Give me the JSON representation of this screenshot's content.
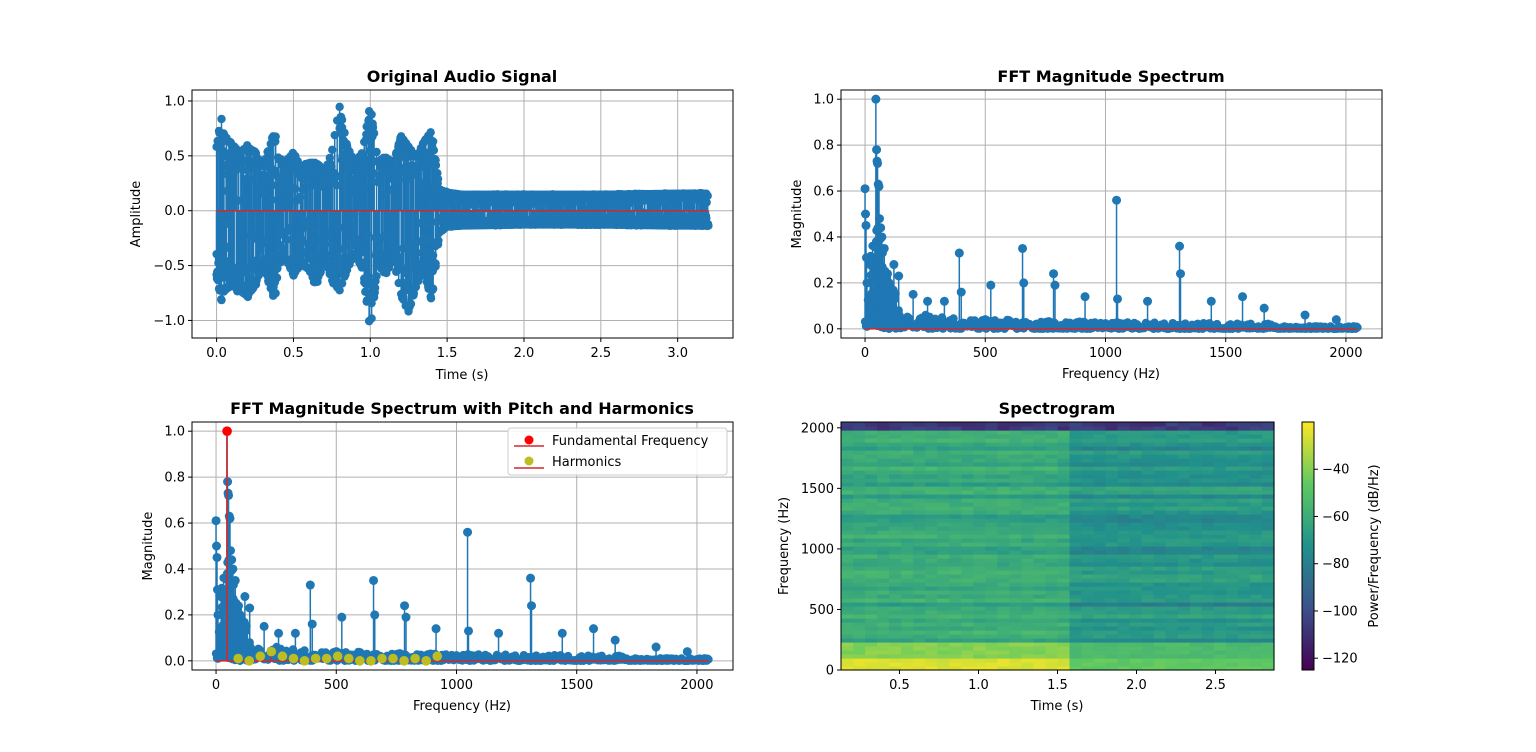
{
  "chart_data": [
    {
      "type": "stem",
      "title": "Original Audio Signal",
      "xlabel": "Time (s)",
      "ylabel": "Amplitude",
      "xlim": [
        -0.16,
        3.36
      ],
      "ylim": [
        -1.16,
        1.1
      ],
      "xticks": [
        0.0,
        0.5,
        1.0,
        1.5,
        2.0,
        2.5,
        3.0
      ],
      "xtick_labels": [
        "0.0",
        "0.5",
        "1.0",
        "1.5",
        "2.0",
        "2.5",
        "3.0"
      ],
      "yticks": [
        -1.0,
        -0.5,
        0.0,
        0.5,
        1.0
      ],
      "ytick_labels": [
        "−1.0",
        "−0.5",
        "0.0",
        "0.5",
        "1.0"
      ],
      "grid": true,
      "series_color": "#1f77b4",
      "baseline_color": "#d62728",
      "envelope": {
        "t": [
          0.0,
          0.03,
          0.05,
          0.1,
          0.15,
          0.2,
          0.25,
          0.3,
          0.38,
          0.4,
          0.45,
          0.5,
          0.55,
          0.6,
          0.65,
          0.7,
          0.75,
          0.8,
          0.85,
          0.9,
          0.95,
          1.0,
          1.05,
          1.1,
          1.15,
          1.2,
          1.25,
          1.3,
          1.35,
          1.4,
          1.45,
          1.5,
          1.6,
          2.0,
          2.5,
          3.0,
          3.2
        ],
        "max": [
          0.6,
          0.88,
          0.7,
          0.62,
          0.55,
          0.6,
          0.55,
          0.4,
          0.75,
          0.5,
          0.45,
          0.55,
          0.4,
          0.45,
          0.45,
          0.35,
          0.55,
          0.98,
          0.6,
          0.45,
          0.55,
          1.0,
          0.45,
          0.5,
          0.45,
          0.7,
          0.6,
          0.5,
          0.65,
          0.75,
          0.2,
          0.17,
          0.15,
          0.15,
          0.15,
          0.16,
          0.16
        ],
        "min": [
          -0.6,
          -0.85,
          -0.75,
          -0.7,
          -0.75,
          -0.8,
          -0.7,
          -0.5,
          -0.85,
          -0.5,
          -0.45,
          -0.6,
          -0.5,
          -0.55,
          -0.7,
          -0.45,
          -0.65,
          -0.75,
          -0.55,
          -0.4,
          -0.55,
          -1.12,
          -0.5,
          -0.6,
          -0.45,
          -0.78,
          -0.95,
          -0.7,
          -0.55,
          -0.85,
          -0.2,
          -0.15,
          -0.14,
          -0.13,
          -0.13,
          -0.14,
          -0.14
        ]
      }
    },
    {
      "type": "stem",
      "title": "FFT Magnitude Spectrum",
      "xlabel": "Frequency (Hz)",
      "ylabel": "Magnitude",
      "xlim": [
        -100,
        2150
      ],
      "ylim": [
        -0.04,
        1.04
      ],
      "xticks": [
        0,
        500,
        1000,
        1500,
        2000
      ],
      "xtick_labels": [
        "0",
        "500",
        "1000",
        "1500",
        "2000"
      ],
      "yticks": [
        0.0,
        0.2,
        0.4,
        0.6,
        0.8,
        1.0
      ],
      "ytick_labels": [
        "0.0",
        "0.2",
        "0.4",
        "0.6",
        "0.8",
        "1.0"
      ],
      "grid": true,
      "series_color": "#1f77b4",
      "baseline_color": "#d62728",
      "peaks": {
        "freq": [
          0,
          2,
          4,
          6,
          8,
          45,
          48,
          50,
          52,
          55,
          58,
          60,
          65,
          70,
          80,
          100,
          120,
          140,
          200,
          260,
          330,
          392,
          400,
          523,
          655,
          660,
          784,
          790,
          915,
          1046,
          1050,
          1175,
          1308,
          1312,
          1440,
          1570,
          1660,
          1830,
          1960
        ],
        "mag": [
          0.61,
          0.5,
          0.45,
          0.31,
          0.2,
          1.0,
          0.78,
          0.73,
          0.72,
          0.63,
          0.62,
          0.48,
          0.44,
          0.4,
          0.35,
          0.2,
          0.28,
          0.23,
          0.15,
          0.12,
          0.12,
          0.33,
          0.16,
          0.19,
          0.35,
          0.2,
          0.24,
          0.19,
          0.14,
          0.56,
          0.13,
          0.12,
          0.36,
          0.24,
          0.12,
          0.14,
          0.09,
          0.06,
          0.04
        ]
      }
    },
    {
      "type": "stem",
      "title": "FFT Magnitude Spectrum with Pitch and Harmonics",
      "xlabel": "Frequency (Hz)",
      "ylabel": "Magnitude",
      "xlim": [
        -100,
        2150
      ],
      "ylim": [
        -0.04,
        1.04
      ],
      "xticks": [
        0,
        500,
        1000,
        1500,
        2000
      ],
      "xtick_labels": [
        "0",
        "500",
        "1000",
        "1500",
        "2000"
      ],
      "yticks": [
        0.0,
        0.2,
        0.4,
        0.6,
        0.8,
        1.0
      ],
      "ytick_labels": [
        "0.0",
        "0.2",
        "0.4",
        "0.6",
        "0.8",
        "1.0"
      ],
      "grid": true,
      "legend": {
        "position": "upper right",
        "entries": [
          "Fundamental Frequency",
          "Harmonics"
        ]
      },
      "fundamental": {
        "freq": 46,
        "mag": 1.0,
        "color": "#ff0000"
      },
      "harmonics": {
        "color": "#bcbd22",
        "freq": [
          92,
          138,
          184,
          230,
          276,
          322,
          368,
          414,
          460,
          506,
          552,
          598,
          644,
          690,
          736,
          782,
          828,
          874,
          920
        ],
        "mag": [
          0.01,
          0.0,
          0.02,
          0.04,
          0.02,
          0.01,
          0.0,
          0.01,
          0.01,
          0.02,
          0.01,
          0.0,
          0.0,
          0.01,
          0.01,
          0.0,
          0.01,
          0.0,
          0.02
        ]
      }
    },
    {
      "type": "heatmap",
      "title": "Spectrogram",
      "xlabel": "Time (s)",
      "ylabel": "Frequency (Hz)",
      "xlim": [
        0.13,
        2.87
      ],
      "ylim": [
        0,
        2048
      ],
      "xticks": [
        0.5,
        1.0,
        1.5,
        2.0,
        2.5
      ],
      "xtick_labels": [
        "0.5",
        "1.0",
        "1.5",
        "2.0",
        "2.5"
      ],
      "yticks": [
        0,
        500,
        1000,
        1500,
        2000
      ],
      "ytick_labels": [
        "0",
        "500",
        "1000",
        "1500",
        "2000"
      ],
      "colormap": "viridis",
      "colorbar": {
        "label": "Power/Frequency (dB/Hz)",
        "range": [
          -125,
          -20
        ],
        "ticks": [
          -40,
          -60,
          -80,
          -100,
          -120
        ],
        "tick_labels": [
          "−40",
          "−60",
          "−80",
          "−100",
          "−120"
        ]
      }
    }
  ]
}
